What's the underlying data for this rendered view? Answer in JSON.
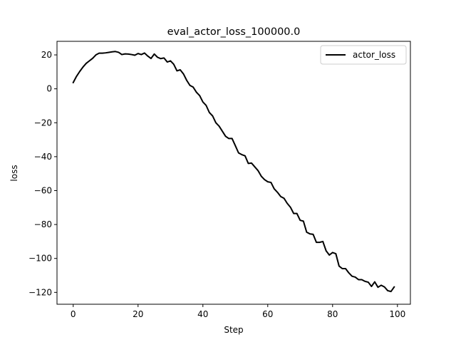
{
  "chart_data": {
    "type": "line",
    "title": "eval_actor_loss_100000.0",
    "xlabel": "Step",
    "ylabel": "loss",
    "xlim": [
      -5,
      104
    ],
    "ylim": [
      -127,
      28
    ],
    "xticks": [
      0,
      20,
      40,
      60,
      80,
      100
    ],
    "yticks": [
      20,
      0,
      -20,
      -40,
      -60,
      -80,
      -100,
      -120
    ],
    "tick_labels": {
      "x": [
        "0",
        "20",
        "40",
        "60",
        "80",
        "100"
      ],
      "y": [
        "20",
        "0",
        "−20",
        "−40",
        "−60",
        "−80",
        "−100",
        "−120"
      ]
    },
    "legend": {
      "position": "top-right",
      "entries": [
        "actor_loss"
      ]
    },
    "grid": false,
    "series": [
      {
        "name": "actor_loss",
        "color": "#000000",
        "x": [
          0,
          1,
          2,
          3,
          4,
          5,
          6,
          7,
          8,
          9,
          10,
          11,
          12,
          13,
          14,
          15,
          16,
          17,
          18,
          19,
          20,
          21,
          22,
          23,
          24,
          25,
          26,
          27,
          28,
          29,
          30,
          31,
          32,
          33,
          34,
          35,
          36,
          37,
          38,
          39,
          40,
          41,
          42,
          43,
          44,
          45,
          46,
          47,
          48,
          49,
          50,
          51,
          52,
          53,
          54,
          55,
          56,
          57,
          58,
          59,
          60,
          61,
          62,
          63,
          64,
          65,
          66,
          67,
          68,
          69,
          70,
          71,
          72,
          73,
          74,
          75,
          76,
          77,
          78,
          79,
          80,
          81,
          82,
          83,
          84,
          85,
          86,
          87,
          88,
          89,
          90,
          91,
          92,
          93,
          94,
          95,
          96,
          97,
          98,
          99
        ],
        "y": [
          3.7,
          7.3,
          10.2,
          12.8,
          15.0,
          16.5,
          18.0,
          20.0,
          21.0,
          21.0,
          21.2,
          21.5,
          21.8,
          22.0,
          21.5,
          20.2,
          20.6,
          20.5,
          20.2,
          19.8,
          20.8,
          20.2,
          21.1,
          19.3,
          17.9,
          20.5,
          18.6,
          17.8,
          18.2,
          15.8,
          16.5,
          14.5,
          10.6,
          11.2,
          8.8,
          5.0,
          2.0,
          1.0,
          -2.0,
          -4.0,
          -7.8,
          -9.8,
          -14.0,
          -16.0,
          -20.0,
          -22.0,
          -25.0,
          -28.0,
          -29.3,
          -29.3,
          -33.5,
          -37.8,
          -38.8,
          -39.5,
          -44.0,
          -43.8,
          -46.0,
          -48.2,
          -51.5,
          -53.5,
          -54.8,
          -55.2,
          -59.0,
          -61.0,
          -63.5,
          -64.5,
          -67.5,
          -69.8,
          -73.5,
          -73.5,
          -77.5,
          -78.0,
          -84.5,
          -85.5,
          -85.8,
          -90.5,
          -90.5,
          -90.0,
          -95.5,
          -98.0,
          -96.5,
          -97.2,
          -104.5,
          -106.0,
          -106.0,
          -108.5,
          -110.5,
          -111.0,
          -112.5,
          -112.5,
          -113.5,
          -114.0,
          -116.5,
          -113.8,
          -117.0,
          -115.8,
          -116.8,
          -119.0,
          -119.5,
          -116.8
        ]
      }
    ]
  }
}
